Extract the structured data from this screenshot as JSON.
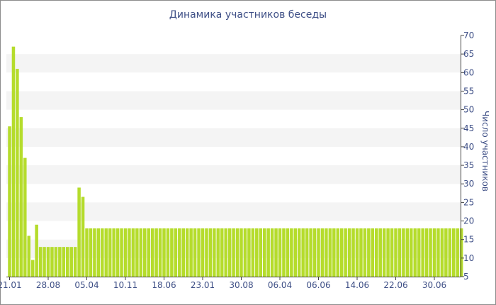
{
  "chart_data": {
    "type": "bar",
    "title": "Динамика участников беседы",
    "ylabel": "Число участников",
    "xlabel": "",
    "ylim": [
      5,
      70
    ],
    "yticks": [
      5,
      10,
      15,
      20,
      25,
      30,
      35,
      40,
      45,
      50,
      55,
      60,
      65,
      70
    ],
    "y_axis_position": "right",
    "grid": "alternating horizontal bands",
    "bar_color": "#b5dc2c",
    "band_color": "#f4f4f4",
    "text_color": "#3e4f86",
    "xtick_labels": [
      {
        "index": 0,
        "label": "21.01"
      },
      {
        "index": 10,
        "label": "28.08"
      },
      {
        "index": 20,
        "label": "05.04"
      },
      {
        "index": 30,
        "label": "10.11"
      },
      {
        "index": 40,
        "label": "18.06"
      },
      {
        "index": 50,
        "label": "23.01"
      },
      {
        "index": 60,
        "label": "30.08"
      },
      {
        "index": 70,
        "label": "06.04"
      },
      {
        "index": 80,
        "label": "06.06"
      },
      {
        "index": 90,
        "label": "14.06"
      },
      {
        "index": 100,
        "label": "22.06"
      },
      {
        "index": 110,
        "label": "30.06"
      }
    ],
    "values": [
      45.5,
      67,
      61,
      48,
      37,
      16,
      9.5,
      19,
      13,
      13,
      13,
      13,
      13,
      13,
      13,
      13,
      13,
      13,
      29,
      26.5,
      18,
      18,
      18,
      18,
      18,
      18,
      18,
      18,
      18,
      18,
      18,
      18,
      18,
      18,
      18,
      18,
      18,
      18,
      18,
      18,
      18,
      18,
      18,
      18,
      18,
      18,
      18,
      18,
      18,
      18,
      18,
      18,
      18,
      18,
      18,
      18,
      18,
      18,
      18,
      18,
      18,
      18,
      18,
      18,
      18,
      18,
      18,
      18,
      18,
      18,
      18,
      18,
      18,
      18,
      18,
      18,
      18,
      18,
      18,
      18,
      18,
      18,
      18,
      18,
      18,
      18,
      18,
      18,
      18,
      18,
      18,
      18,
      18,
      18,
      18,
      18,
      18,
      18,
      18,
      18,
      18,
      18,
      18,
      18,
      18,
      18,
      18,
      18,
      18,
      18,
      18,
      18,
      18,
      18,
      18,
      18,
      18,
      18
    ]
  }
}
